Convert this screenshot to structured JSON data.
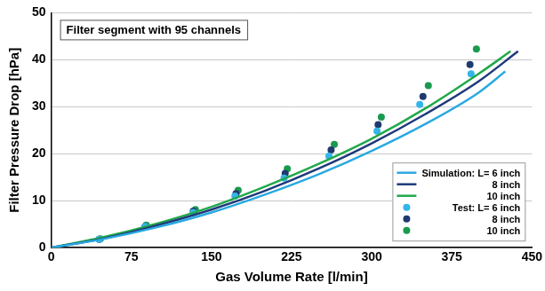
{
  "chart_data": {
    "type": "scatter",
    "annotation": "Filter segment with 95 channels",
    "x_label": "Gas Volume Rate [l/min]",
    "y_label": "Filter Pressure Drop [hPa]",
    "xlim": [
      0,
      450
    ],
    "xticks": [
      0,
      75,
      150,
      225,
      300,
      375,
      450
    ],
    "ylim": [
      0,
      50
    ],
    "yticks": [
      0,
      10,
      20,
      30,
      40,
      50
    ],
    "grid": "y",
    "legend": "lower right",
    "series": [
      {
        "name": "Simulation: L= 6 inch",
        "type": "line",
        "line_style": "solid",
        "color": "#29a9e1",
        "x": [
          0,
          50,
          100,
          150,
          200,
          250,
          300,
          350,
          400,
          425
        ],
        "values": [
          0,
          1.9,
          4.4,
          7.5,
          11.3,
          15.6,
          20.6,
          26.3,
          33.0,
          37.5
        ]
      },
      {
        "name": "8 inch",
        "type": "line",
        "line_style": "solid",
        "color": "#1f3a7a",
        "x": [
          0,
          50,
          100,
          150,
          200,
          250,
          300,
          350,
          400,
          437
        ],
        "values": [
          0,
          2.0,
          4.8,
          8.1,
          12.1,
          16.8,
          22.2,
          28.4,
          35.4,
          41.8
        ]
      },
      {
        "name": "10 inch",
        "type": "line",
        "line_style": "solid",
        "color": "#22a84a",
        "x": [
          0,
          50,
          100,
          150,
          200,
          250,
          300,
          350,
          400,
          430
        ],
        "values": [
          0,
          2.3,
          5.2,
          8.7,
          13.0,
          17.8,
          23.2,
          29.6,
          37.0,
          41.8
        ]
      },
      {
        "name": "Test: L= 6 inch",
        "type": "scatter",
        "marker": "circle",
        "color": "#33b5ea",
        "x": [
          45,
          88,
          133,
          172,
          218,
          260,
          305,
          345,
          393
        ],
        "values": [
          1.8,
          4.5,
          7.5,
          11.0,
          14.8,
          19.5,
          24.8,
          30.5,
          37.0
        ]
      },
      {
        "name": "8 inch",
        "type": "scatter",
        "marker": "circle",
        "color": "#1f3a70",
        "x": [
          45,
          88,
          133,
          173,
          219,
          262,
          306,
          348,
          392
        ],
        "values": [
          1.8,
          4.5,
          7.8,
          11.5,
          15.8,
          20.8,
          26.2,
          32.2,
          39.0
        ]
      },
      {
        "name": "10 inch",
        "type": "scatter",
        "marker": "circle",
        "color": "#1a9a4e",
        "x": [
          46,
          89,
          135,
          175,
          221,
          265,
          309,
          353,
          398
        ],
        "values": [
          1.9,
          4.8,
          8.1,
          12.2,
          16.8,
          22.0,
          27.8,
          34.5,
          42.3
        ]
      }
    ]
  }
}
